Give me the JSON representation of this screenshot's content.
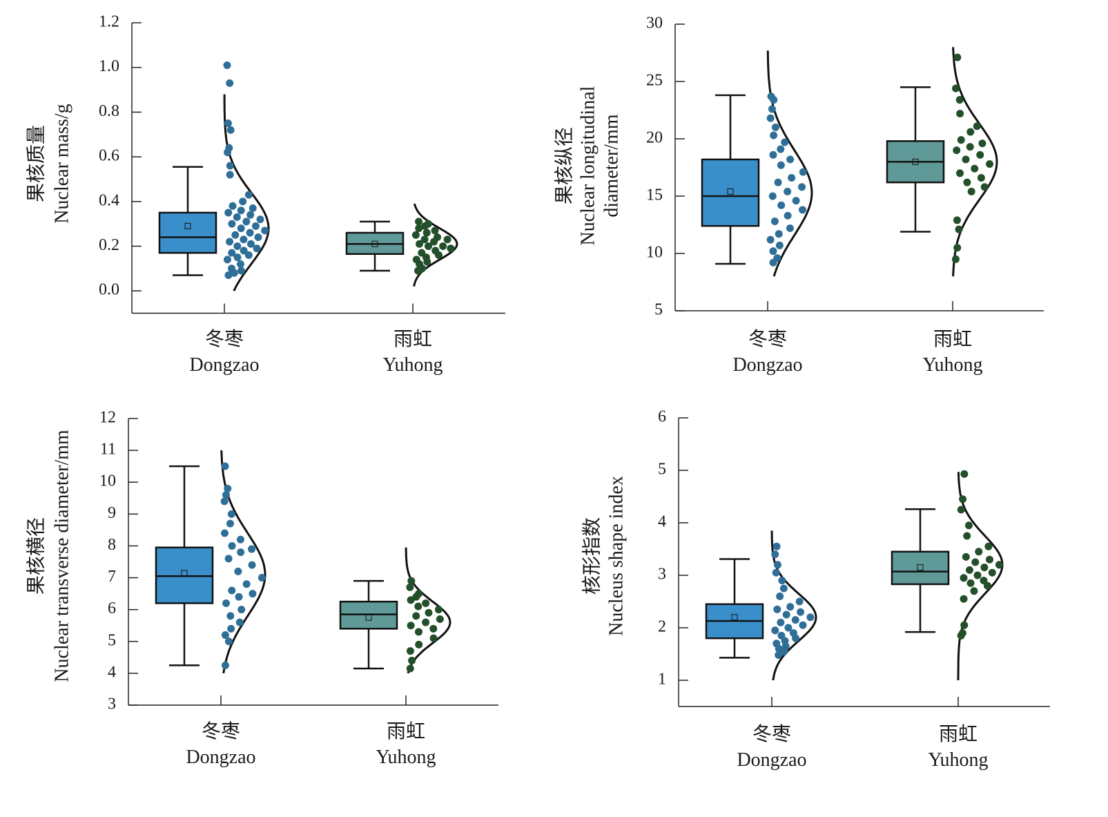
{
  "chart_data": [
    {
      "type": "raincloud",
      "ylabel": [
        "果核质量",
        "Nuclear mass/g"
      ],
      "categories": [
        "冬枣",
        "雨虹"
      ],
      "category_subtitles": [
        "Dongzao",
        "Yuhong"
      ],
      "ylim": [
        -0.1,
        1.2
      ],
      "yticks": [
        {
          "value": 0,
          "label": "0.0"
        },
        {
          "value": 0.2,
          "label": "0.2"
        },
        {
          "value": 0.4,
          "label": "0.4"
        },
        {
          "value": 0.6,
          "label": "0.6"
        },
        {
          "value": 0.8,
          "label": "0.8"
        },
        {
          "value": 1,
          "label": "1.0"
        },
        {
          "value": 1.2,
          "label": "1.2"
        }
      ],
      "groups": [
        {
          "color": "#3a8fcb",
          "point_color": "#2f6f97",
          "box": {
            "min": 0.07,
            "q1": 0.17,
            "median": 0.24,
            "q3": 0.35,
            "max": 0.555,
            "mean": 0.29
          },
          "curve": {
            "mean": 0.28,
            "sd": 0.16,
            "from": 0,
            "to": 0.88
          },
          "points": [
            1.01,
            0.93,
            0.75,
            0.72,
            0.64,
            0.62,
            0.56,
            0.52,
            0.43,
            0.4,
            0.38,
            0.37,
            0.36,
            0.35,
            0.34,
            0.33,
            0.32,
            0.31,
            0.3,
            0.29,
            0.28,
            0.27,
            0.26,
            0.25,
            0.24,
            0.23,
            0.22,
            0.21,
            0.2,
            0.19,
            0.18,
            0.17,
            0.16,
            0.15,
            0.14,
            0.12,
            0.1,
            0.09,
            0.08,
            0.07
          ]
        },
        {
          "color": "#5f9a98",
          "point_color": "#234f2a",
          "box": {
            "min": 0.09,
            "q1": 0.165,
            "median": 0.21,
            "q3": 0.26,
            "max": 0.31,
            "mean": 0.21
          },
          "curve": {
            "mean": 0.21,
            "sd": 0.07,
            "from": 0.02,
            "to": 0.39
          },
          "points": [
            0.31,
            0.3,
            0.29,
            0.28,
            0.27,
            0.26,
            0.25,
            0.24,
            0.23,
            0.23,
            0.22,
            0.21,
            0.2,
            0.2,
            0.19,
            0.18,
            0.17,
            0.16,
            0.15,
            0.14,
            0.13,
            0.12,
            0.1,
            0.09
          ]
        }
      ]
    },
    {
      "type": "raincloud",
      "ylabel": [
        "果核纵径",
        "Nuclear longitudinal",
        "diameter/mm"
      ],
      "categories": [
        "冬枣",
        "雨虹"
      ],
      "category_subtitles": [
        "Dongzao",
        "Yuhong"
      ],
      "ylim": [
        5,
        30
      ],
      "yticks": [
        5,
        10,
        15,
        20,
        25,
        30
      ],
      "groups": [
        {
          "color": "#3a8fcb",
          "point_color": "#2f6f97",
          "box": {
            "min": 9.1,
            "q1": 12.4,
            "median": 15,
            "q3": 18.2,
            "max": 23.8,
            "mean": 15.4
          },
          "curve": {
            "mean": 15.3,
            "sd": 3.7,
            "from": 8,
            "to": 27.7
          },
          "points": [
            23.7,
            23.4,
            22.6,
            21.8,
            21,
            20.3,
            19.7,
            19.1,
            18.6,
            18.2,
            17.7,
            17.1,
            16.6,
            16.2,
            15.8,
            15.4,
            15,
            14.6,
            14.2,
            13.8,
            13.3,
            12.8,
            12.2,
            11.7,
            11.2,
            10.7,
            10.2,
            9.6,
            9.2
          ]
        },
        {
          "color": "#5f9a98",
          "point_color": "#234f2a",
          "box": {
            "min": 11.9,
            "q1": 16.2,
            "median": 18,
            "q3": 19.8,
            "max": 24.5,
            "mean": 18
          },
          "curve": {
            "mean": 18,
            "sd": 3.3,
            "from": 8,
            "to": 28
          },
          "points": [
            27.1,
            24.4,
            23.4,
            22.2,
            21.1,
            20.6,
            19.9,
            19.6,
            19.3,
            19,
            18.6,
            18.2,
            17.8,
            17.4,
            17,
            16.6,
            16.2,
            15.8,
            15.4,
            12.9,
            12.1,
            10.5,
            9.5
          ]
        }
      ]
    },
    {
      "type": "raincloud",
      "ylabel": [
        "果核横径",
        "Nuclear transverse diameter/mm"
      ],
      "categories": [
        "冬枣",
        "雨虹"
      ],
      "category_subtitles": [
        "Dongzao",
        "Yuhong"
      ],
      "ylim": [
        3,
        12
      ],
      "yticks": [
        3,
        4,
        5,
        6,
        7,
        8,
        9,
        10,
        11,
        12
      ],
      "groups": [
        {
          "color": "#3a8fcb",
          "point_color": "#2f6f97",
          "box": {
            "min": 4.25,
            "q1": 6.2,
            "median": 7.05,
            "q3": 7.95,
            "max": 10.5,
            "mean": 7.15
          },
          "curve": {
            "mean": 7.1,
            "sd": 1.3,
            "from": 4,
            "to": 11
          },
          "points": [
            10.5,
            9.8,
            9.6,
            9.4,
            9,
            8.7,
            8.4,
            8.2,
            8,
            7.9,
            7.8,
            7.6,
            7.4,
            7.2,
            7,
            6.8,
            6.6,
            6.5,
            6.4,
            6.2,
            6,
            5.8,
            5.6,
            5.4,
            5.2,
            5,
            4.25
          ]
        },
        {
          "color": "#5f9a98",
          "point_color": "#234f2a",
          "box": {
            "min": 4.15,
            "q1": 5.4,
            "median": 5.85,
            "q3": 6.25,
            "max": 6.9,
            "mean": 5.75
          },
          "curve": {
            "mean": 5.6,
            "sd": 0.65,
            "from": 4,
            "to": 7.95
          },
          "points": [
            6.9,
            6.7,
            6.5,
            6.4,
            6.3,
            6.2,
            6.1,
            6,
            5.9,
            5.8,
            5.7,
            5.6,
            5.5,
            5.4,
            5.3,
            5.1,
            4.9,
            4.7,
            4.4,
            4.15
          ]
        }
      ]
    },
    {
      "type": "raincloud",
      "ylabel": [
        "核形指数",
        "Nucleus shape index"
      ],
      "categories": [
        "冬枣",
        "雨虹"
      ],
      "category_subtitles": [
        "Dongzao",
        "Yuhong"
      ],
      "ylim": [
        0.5,
        6
      ],
      "yticks": [
        1,
        2,
        3,
        4,
        5,
        6
      ],
      "groups": [
        {
          "color": "#3a8fcb",
          "point_color": "#2f6f97",
          "box": {
            "min": 1.43,
            "q1": 1.8,
            "median": 2.13,
            "q3": 2.45,
            "max": 3.31,
            "mean": 2.2
          },
          "curve": {
            "mean": 2.2,
            "sd": 0.45,
            "from": 1,
            "to": 3.85
          },
          "points": [
            3.55,
            3.4,
            3.2,
            3.05,
            2.9,
            2.75,
            2.6,
            2.5,
            2.4,
            2.35,
            2.3,
            2.25,
            2.2,
            2.15,
            2.1,
            2.05,
            2,
            1.95,
            1.9,
            1.85,
            1.8,
            1.75,
            1.7,
            1.65,
            1.6,
            1.55,
            1.48
          ]
        },
        {
          "color": "#5f9a98",
          "point_color": "#234f2a",
          "box": {
            "min": 1.92,
            "q1": 2.83,
            "median": 3.07,
            "q3": 3.45,
            "max": 4.26,
            "mean": 3.15
          },
          "curve": {
            "mean": 3.2,
            "sd": 0.55,
            "from": 1,
            "to": 4.97
          },
          "points": [
            4.93,
            4.45,
            4.25,
            3.95,
            3.75,
            3.55,
            3.45,
            3.35,
            3.3,
            3.25,
            3.2,
            3.15,
            3.1,
            3.05,
            3,
            2.95,
            2.9,
            2.85,
            2.8,
            2.7,
            2.55,
            2.05,
            1.9,
            1.85
          ]
        }
      ]
    }
  ]
}
